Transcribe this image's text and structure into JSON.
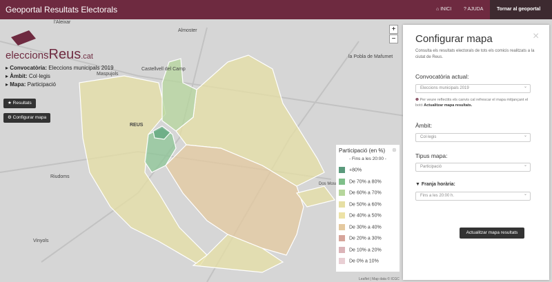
{
  "header": {
    "title": "Geoportal Resultats Electorals",
    "nav": [
      "INICI",
      "AJUDA",
      "Tornar al geoportal"
    ]
  },
  "map": {
    "labels": [
      "l'Aleixar",
      "Almoster",
      "Castellvell del Camp",
      "Maspujols",
      "la Pobla de Mafumet",
      "REUS",
      "Riudoms",
      "Vinyols",
      "Dos Mosquets"
    ],
    "zoom": [
      "+",
      "−"
    ],
    "attribution": "Leaflet | Map data © ICGC"
  },
  "logo": {
    "name": "eleccions",
    "city": "Reus",
    "domain": ".cat"
  },
  "info": [
    {
      "label": "Convocatòria:",
      "value": "Eleccions municipals 2019"
    },
    {
      "label": "Àmbit:",
      "value": "Col·legis"
    },
    {
      "label": "Mapa:",
      "value": "Participació"
    }
  ],
  "buttons": [
    "Resultats",
    "Configurar mapa"
  ],
  "legend": {
    "title": "Participació (en %)",
    "subtitle": "- Fins a les 20:00 -",
    "items": [
      "+80%",
      "De 70% a 80%",
      "De 60% a 70%",
      "De 50% a 60%",
      "De 40% a 50%",
      "De 30% a 40%",
      "De 20% a 30%",
      "De 10% a 20%",
      "De 0% a 10%"
    ]
  },
  "panel": {
    "title": "Configurar mapa",
    "close": "×",
    "description": "Consulta els resultats electorals de tots els comicis realitzats a la ciutat de Reus.",
    "fields": [
      {
        "label": "Convocatòria actual:",
        "value": "Eleccions municipals 2019"
      },
      {
        "label": "Àmbit:",
        "value": "Col·legis"
      },
      {
        "label": "Tipus mapa:",
        "value": "Participació"
      },
      {
        "label": "Franja horària:",
        "value": "Fins a les 20:00 h."
      }
    ],
    "note": "Per veure reflectits els canvis cal refrescar el mapa mitjançant el botó",
    "note_action": "Actualitzar mapa resultats.",
    "button": "Actualitzar mapa resultats"
  }
}
